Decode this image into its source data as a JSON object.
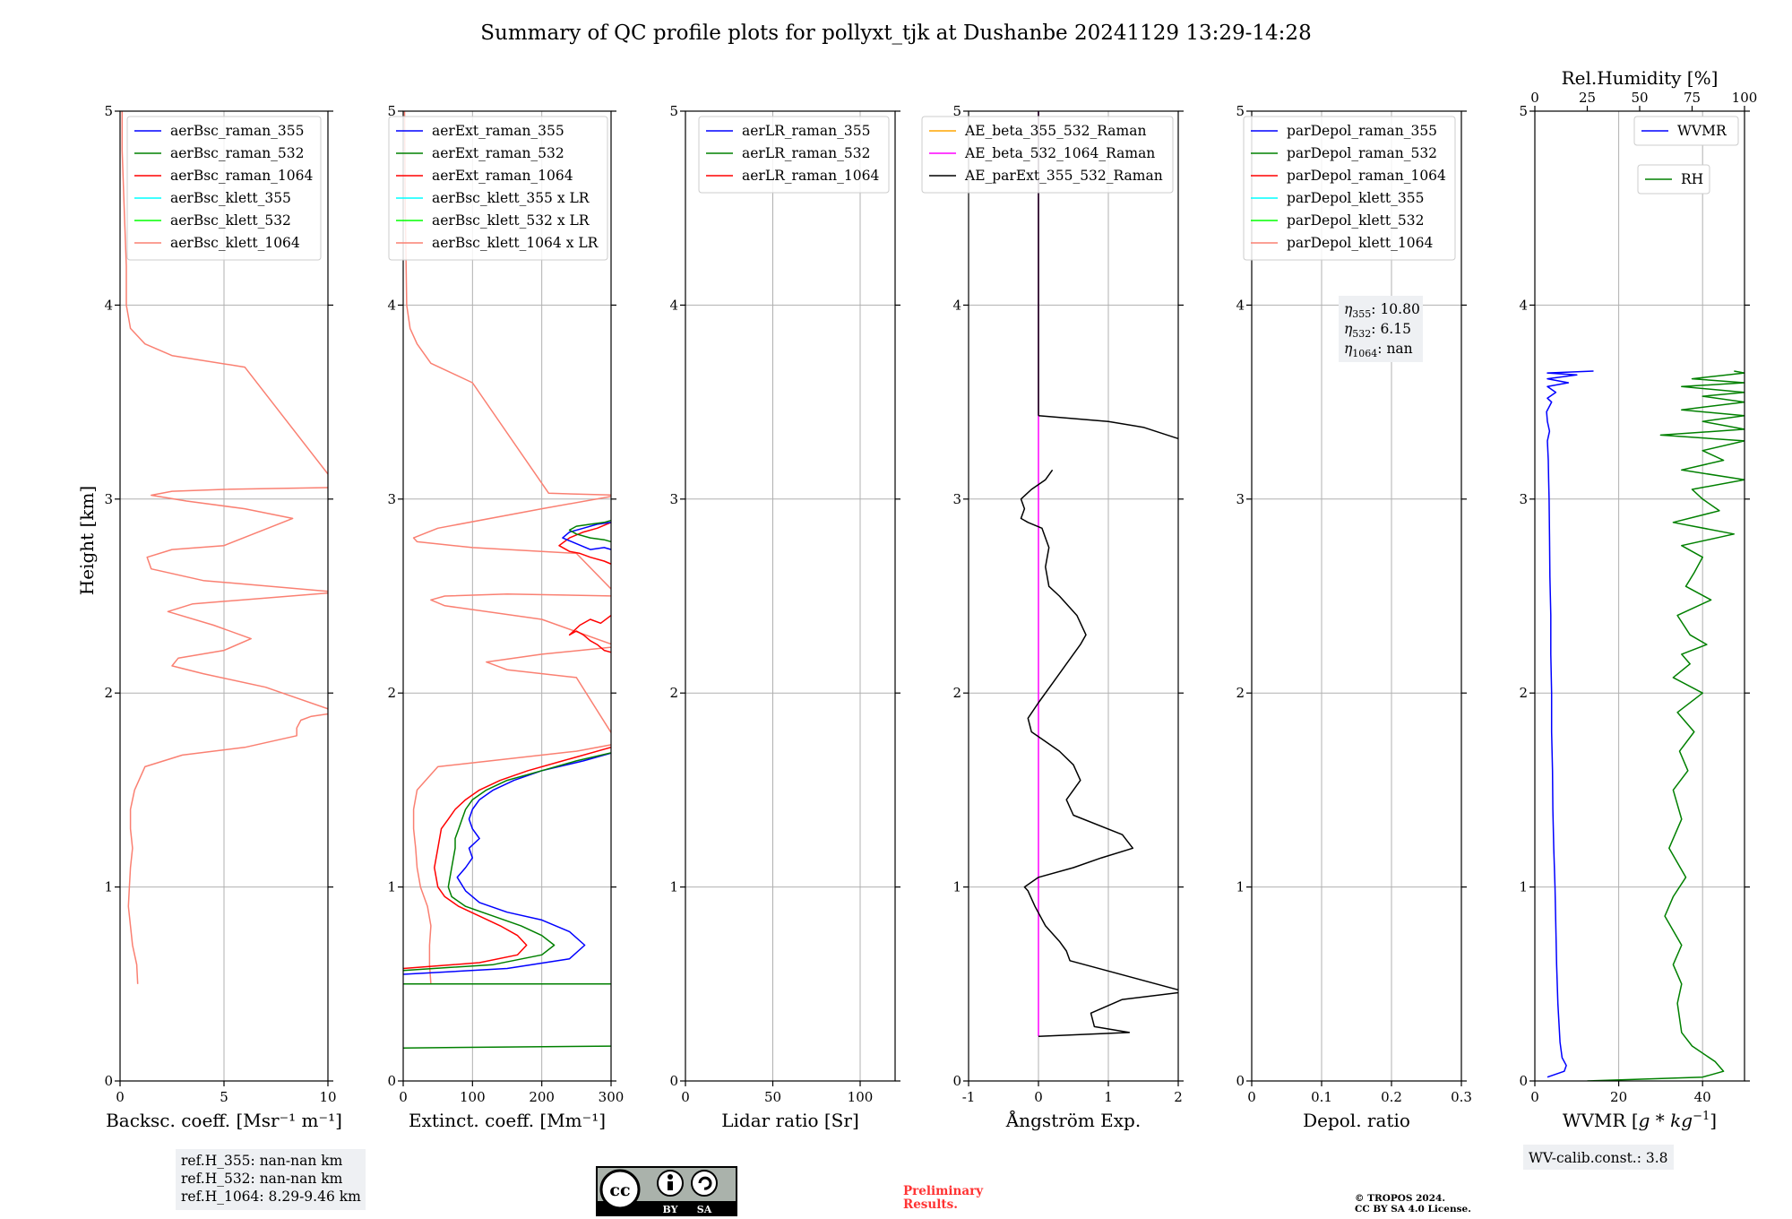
{
  "title": "Summary of QC profile plots for pollyxt_tjk at Dushanbe 20241129 13:29-14:28",
  "colors": {
    "b355": "#0000ff",
    "g532": "#008000",
    "r1064": "#ff0000",
    "k355": "#00ffff",
    "k532": "#00ff00",
    "k1064": "#fa8072",
    "orange": "#ffa500",
    "magenta": "#ff00ff",
    "black": "#000000",
    "grid": "#b0b0b0",
    "box": "#eef0f3"
  },
  "chart_data": [
    {
      "type": "line",
      "id": "bsc",
      "xlabel": "Backsc. coeff. [Msr⁻¹ m⁻¹]",
      "ylabel": "Height [km]",
      "xlim": [
        0,
        10
      ],
      "ylim": [
        0,
        5
      ],
      "xticks": [
        0,
        5,
        10
      ],
      "yticks": [
        0,
        1,
        2,
        3,
        4,
        5
      ],
      "grid": true,
      "legend_position": "top-right",
      "legend": [
        "aerBsc_raman_355",
        "aerBsc_raman_532",
        "aerBsc_raman_1064",
        "aerBsc_klett_355",
        "aerBsc_klett_532",
        "aerBsc_klett_1064"
      ],
      "legend_colors": [
        "b355",
        "g532",
        "r1064",
        "k355",
        "k532",
        "k1064"
      ],
      "series": [
        {
          "name": "aerBsc_klett_1064",
          "color": "k1064",
          "x": [
            0.85,
            0.8,
            0.6,
            0.5,
            0.4,
            0.45,
            0.5,
            0.6,
            0.5,
            0.5,
            0.7,
            1.2,
            3,
            6,
            8.5,
            8.5,
            8.7,
            9.2,
            10.5,
            7,
            4,
            2.5,
            2.8,
            5,
            6.3,
            4.5,
            2.3,
            3.5,
            7,
            10.5,
            4,
            1.5,
            1.3,
            2.5,
            5,
            8.3,
            6,
            3.2,
            1.5,
            2.5,
            5,
            10.5,
            6,
            2.5,
            1.2,
            0.5,
            0.3,
            0.3,
            0.2,
            0.1,
            0.1
          ],
          "y": [
            0.5,
            0.6,
            0.7,
            0.8,
            0.9,
            1.0,
            1.1,
            1.2,
            1.3,
            1.4,
            1.5,
            1.62,
            1.68,
            1.72,
            1.78,
            1.82,
            1.86,
            1.88,
            1.9,
            2.03,
            2.1,
            2.14,
            2.18,
            2.22,
            2.28,
            2.35,
            2.42,
            2.46,
            2.49,
            2.52,
            2.58,
            2.64,
            2.7,
            2.74,
            2.76,
            2.9,
            2.95,
            2.99,
            3.02,
            3.04,
            3.05,
            3.06,
            3.68,
            3.74,
            3.8,
            3.88,
            4.0,
            4.2,
            4.5,
            4.8,
            5.0
          ]
        }
      ],
      "annotation": [
        "ref.H_355: nan-nan km",
        "ref.H_532: nan-nan km",
        "ref.H_1064: 8.29-9.46 km"
      ]
    },
    {
      "type": "line",
      "id": "ext",
      "xlabel": "Extinct. coeff. [Mm⁻¹]",
      "xlim": [
        0,
        300
      ],
      "ylim": [
        0,
        5
      ],
      "xticks": [
        0,
        100,
        200,
        300
      ],
      "yticks": [
        0,
        1,
        2,
        3,
        4,
        5
      ],
      "grid": true,
      "legend_position": "top-right",
      "legend": [
        "aerExt_raman_355",
        "aerExt_raman_532",
        "aerExt_raman_1064",
        "aerBsc_klett_355 x LR",
        "aerBsc_klett_532 x LR",
        "aerBsc_klett_1064 x LR"
      ],
      "legend_colors": [
        "b355",
        "g532",
        "r1064",
        "k355",
        "k532",
        "k1064"
      ],
      "series": [
        {
          "name": "aerBsc_klett_1064 x LR",
          "color": "k1064",
          "x": [
            40,
            38,
            38,
            40,
            35,
            25,
            20,
            18,
            15,
            15,
            20,
            50,
            150,
            250,
            310,
            250,
            150,
            120,
            200,
            310,
            200,
            60,
            40,
            60,
            150,
            310,
            250,
            100,
            20,
            15,
            50,
            200,
            310,
            210,
            100,
            40,
            20,
            10,
            5,
            3,
            2
          ],
          "y": [
            0.5,
            0.6,
            0.7,
            0.8,
            0.9,
            1.0,
            1.1,
            1.2,
            1.3,
            1.4,
            1.5,
            1.62,
            1.66,
            1.7,
            1.74,
            2.08,
            2.12,
            2.16,
            2.2,
            2.24,
            2.38,
            2.45,
            2.48,
            2.5,
            2.51,
            2.5,
            2.72,
            2.75,
            2.78,
            2.8,
            2.85,
            2.95,
            3.02,
            3.03,
            3.6,
            3.7,
            3.8,
            3.88,
            4.0,
            4.5,
            5.0
          ]
        },
        {
          "name": "aerExt_raman_355",
          "color": "b355",
          "x": [
            0,
            150,
            240,
            262,
            240,
            200,
            150,
            110,
            90,
            78,
            90,
            100,
            95,
            110,
            100,
            95,
            100,
            110,
            130,
            160,
            200,
            260,
            310
          ],
          "y": [
            0.55,
            0.58,
            0.63,
            0.7,
            0.77,
            0.83,
            0.87,
            0.92,
            0.98,
            1.05,
            1.1,
            1.15,
            1.2,
            1.25,
            1.3,
            1.35,
            1.4,
            1.45,
            1.5,
            1.55,
            1.6,
            1.65,
            1.7
          ]
        },
        {
          "name": "aerExt_raman_532",
          "color": "g532",
          "x": [
            0,
            130,
            200,
            218,
            200,
            170,
            130,
            90,
            70,
            65,
            70,
            75,
            75,
            80,
            85,
            90,
            100,
            120,
            150,
            200,
            250,
            310
          ],
          "y": [
            0.57,
            0.6,
            0.65,
            0.7,
            0.75,
            0.8,
            0.85,
            0.9,
            0.95,
            1.0,
            1.1,
            1.2,
            1.25,
            1.3,
            1.35,
            1.4,
            1.45,
            1.5,
            1.55,
            1.6,
            1.65,
            1.7
          ]
        },
        {
          "name": "aerExt_raman_1064",
          "color": "r1064",
          "x": [
            0,
            110,
            165,
            178,
            165,
            140,
            110,
            80,
            60,
            50,
            45,
            50,
            55,
            65,
            75,
            90,
            110,
            140,
            180,
            230,
            310
          ],
          "y": [
            0.58,
            0.61,
            0.65,
            0.7,
            0.75,
            0.8,
            0.85,
            0.9,
            0.95,
            1.0,
            1.1,
            1.2,
            1.3,
            1.35,
            1.4,
            1.45,
            1.5,
            1.55,
            1.6,
            1.65,
            1.73
          ]
        },
        {
          "name": "aerExt_raman_532 low",
          "color": "g532",
          "x": [
            0,
            310
          ],
          "y": [
            0.17,
            0.18
          ]
        },
        {
          "name": "aerExt_raman_532 low2",
          "color": "g532",
          "x": [
            0,
            310
          ],
          "y": [
            0.5,
            0.5
          ]
        },
        {
          "name": "aerExt_raman_1064 mid",
          "color": "r1064",
          "x": [
            310,
            290,
            280,
            270,
            260,
            250,
            240,
            255,
            270,
            285,
            300,
            310
          ],
          "y": [
            2.2,
            2.22,
            2.25,
            2.27,
            2.3,
            2.32,
            2.3,
            2.35,
            2.38,
            2.36,
            2.4,
            2.42
          ]
        },
        {
          "name": "aerExt_raman_1064 top",
          "color": "r1064",
          "x": [
            310,
            290,
            270,
            255,
            240,
            225,
            240,
            260,
            280,
            300,
            310
          ],
          "y": [
            2.65,
            2.68,
            2.7,
            2.72,
            2.73,
            2.76,
            2.8,
            2.83,
            2.85,
            2.88,
            2.9
          ]
        },
        {
          "name": "aerExt_raman_355 top",
          "color": "b355",
          "x": [
            310,
            290,
            270,
            250,
            230,
            240,
            260,
            280,
            300,
            310
          ],
          "y": [
            2.73,
            2.75,
            2.74,
            2.77,
            2.8,
            2.83,
            2.85,
            2.87,
            2.88,
            2.9
          ]
        },
        {
          "name": "aerExt_raman_532 top",
          "color": "g532",
          "x": [
            310,
            290,
            270,
            250,
            240,
            250,
            270,
            290,
            310
          ],
          "y": [
            2.77,
            2.79,
            2.8,
            2.82,
            2.84,
            2.86,
            2.87,
            2.88,
            2.9
          ]
        }
      ]
    },
    {
      "type": "line",
      "id": "lr",
      "xlabel": "Lidar ratio [Sr]",
      "xlim": [
        0,
        120
      ],
      "ylim": [
        0,
        5
      ],
      "xticks": [
        0,
        50,
        100
      ],
      "yticks": [
        0,
        1,
        2,
        3,
        4,
        5
      ],
      "grid": true,
      "legend_position": "top-right",
      "legend": [
        "aerLR_raman_355",
        "aerLR_raman_532",
        "aerLR_raman_1064"
      ],
      "legend_colors": [
        "b355",
        "g532",
        "r1064"
      ],
      "series": []
    },
    {
      "type": "line",
      "id": "ae",
      "xlabel": "Ångström Exp.",
      "xlim": [
        -1,
        2
      ],
      "ylim": [
        0,
        5
      ],
      "xticks": [
        -1,
        0,
        1,
        2
      ],
      "yticks": [
        0,
        1,
        2,
        3,
        4,
        5
      ],
      "grid": true,
      "legend_position": "top-right",
      "legend": [
        "AE_beta_355_532_Raman",
        "AE_beta_532_1064_Raman",
        "AE_parExt_355_532_Raman"
      ],
      "legend_colors": [
        "orange",
        "magenta",
        "black"
      ],
      "series": [
        {
          "name": "AE_beta_532_1064_Raman",
          "color": "magenta",
          "x": [
            0,
            0
          ],
          "y": [
            0.23,
            5.0
          ]
        },
        {
          "name": "AE_parExt_355_532_Raman",
          "color": "black",
          "x": [
            0,
            1.3,
            0.8,
            0.75,
            1.2,
            2.1,
            0.45,
            0.4,
            0.3,
            0.1,
            -0.05,
            -0.15,
            -0.2,
            0.0,
            0.5,
            0.9,
            1.35,
            1.2,
            0.5,
            0.4,
            0.5,
            0.6,
            0.5,
            0.3,
            0.1,
            -0.1,
            -0.15,
            0.0,
            0.2,
            0.4,
            0.6,
            0.68,
            0.55,
            0.3,
            0.15,
            0.1,
            0.15,
            0.05,
            -0.15,
            -0.25,
            -0.2,
            -0.25,
            -0.1,
            0.1,
            0.2
          ],
          "y": [
            0.23,
            0.25,
            0.28,
            0.35,
            0.42,
            0.46,
            0.62,
            0.67,
            0.72,
            0.8,
            0.9,
            0.98,
            1.0,
            1.05,
            1.1,
            1.15,
            1.2,
            1.27,
            1.37,
            1.45,
            1.5,
            1.55,
            1.63,
            1.7,
            1.75,
            1.8,
            1.87,
            1.95,
            2.05,
            2.15,
            2.25,
            2.3,
            2.4,
            2.5,
            2.55,
            2.65,
            2.75,
            2.85,
            2.88,
            2.9,
            2.95,
            3.0,
            3.05,
            3.1,
            3.15
          ]
        },
        {
          "name": "AE_parExt_355_532_Raman top",
          "color": "black",
          "x": [
            0,
            1.0,
            1.5,
            2.1
          ],
          "y": [
            3.43,
            3.4,
            3.37,
            3.3
          ]
        },
        {
          "name": "AE_parExt_355_532_Raman v",
          "color": "black",
          "x": [
            0,
            0
          ],
          "y": [
            3.43,
            5.0
          ]
        }
      ]
    },
    {
      "type": "line",
      "id": "depol",
      "xlabel": "Depol. ratio",
      "xlim": [
        0,
        0.3
      ],
      "ylim": [
        0,
        5
      ],
      "xticks": [
        0.0,
        0.1,
        0.2,
        0.3
      ],
      "yticks": [
        0,
        1,
        2,
        3,
        4,
        5
      ],
      "grid": true,
      "legend_position": "top-right",
      "legend": [
        "parDepol_raman_355",
        "parDepol_raman_532",
        "parDepol_raman_1064",
        "parDepol_klett_355",
        "parDepol_klett_532",
        "parDepol_klett_1064"
      ],
      "legend_colors": [
        "b355",
        "g532",
        "r1064",
        "k355",
        "k532",
        "k1064"
      ],
      "series": [],
      "annotation": [
        "η355: 10.80",
        "η532: 6.15",
        "η1064: nan"
      ]
    },
    {
      "type": "line",
      "id": "wv",
      "xlabel": "WVMR [g*kg⁻¹]",
      "top_xlabel": "Rel.Humidity [%]",
      "xlim": [
        0,
        50
      ],
      "top_xlim": [
        0,
        100
      ],
      "ylim": [
        0,
        5
      ],
      "xticks": [
        0,
        20,
        40
      ],
      "top_xticks": [
        0,
        25,
        50,
        75,
        100
      ],
      "yticks": [
        0,
        1,
        2,
        3,
        4,
        5
      ],
      "grid": true,
      "legend": [
        "WVMR",
        "RH"
      ],
      "legend_colors": [
        "b355",
        "g532"
      ],
      "series": [
        {
          "name": "WVMR",
          "color": "b355",
          "x": [
            3,
            7,
            7.5,
            6.5,
            6,
            5.5,
            5.2,
            5,
            4.8,
            4.5,
            4.3,
            4.2,
            4,
            4,
            3.8,
            3.8,
            3.6,
            3.5,
            3.4,
            3.3,
            3.2,
            3,
            3.5,
            3,
            2.8,
            4,
            3,
            5,
            3,
            8,
            3,
            10,
            3,
            14
          ],
          "y": [
            0.02,
            0.05,
            0.08,
            0.12,
            0.2,
            0.4,
            0.6,
            0.8,
            1.0,
            1.2,
            1.4,
            1.6,
            1.8,
            2.0,
            2.2,
            2.4,
            2.6,
            2.8,
            3.0,
            3.1,
            3.2,
            3.3,
            3.35,
            3.4,
            3.45,
            3.5,
            3.52,
            3.55,
            3.58,
            3.6,
            3.62,
            3.64,
            3.65,
            3.66
          ]
        },
        {
          "name": "RH",
          "color": "g532",
          "x": [
            25,
            80,
            90,
            86,
            75,
            70,
            68,
            70,
            66,
            70,
            62,
            66,
            72,
            64,
            70,
            66,
            73,
            69,
            76,
            68,
            80,
            66,
            74,
            70,
            82,
            74,
            68,
            84,
            72,
            76,
            80,
            70,
            95,
            66,
            88,
            80,
            75,
            100,
            70,
            90,
            80,
            100,
            60,
            100,
            80,
            100,
            70,
            100,
            80,
            100,
            70,
            100,
            75,
            100,
            95
          ],
          "y": [
            0.0,
            0.02,
            0.05,
            0.1,
            0.18,
            0.25,
            0.4,
            0.5,
            0.6,
            0.7,
            0.85,
            0.95,
            1.05,
            1.2,
            1.35,
            1.5,
            1.6,
            1.7,
            1.8,
            1.9,
            2.0,
            2.08,
            2.15,
            2.2,
            2.25,
            2.3,
            2.4,
            2.48,
            2.55,
            2.62,
            2.7,
            2.76,
            2.82,
            2.88,
            2.94,
            3.0,
            3.05,
            3.1,
            3.15,
            3.2,
            3.25,
            3.3,
            3.33,
            3.36,
            3.4,
            3.43,
            3.46,
            3.5,
            3.53,
            3.55,
            3.58,
            3.6,
            3.62,
            3.65,
            3.66
          ]
        }
      ],
      "annotation": [
        "WV-calib.const.: 3.8"
      ]
    }
  ],
  "footer": {
    "license_badge": [
      "cc",
      "BY",
      "SA"
    ],
    "preliminary": [
      "Preliminary",
      "Results."
    ],
    "copyright": [
      "© TROPOS 2024.",
      "CC BY SA 4.0 License."
    ]
  }
}
